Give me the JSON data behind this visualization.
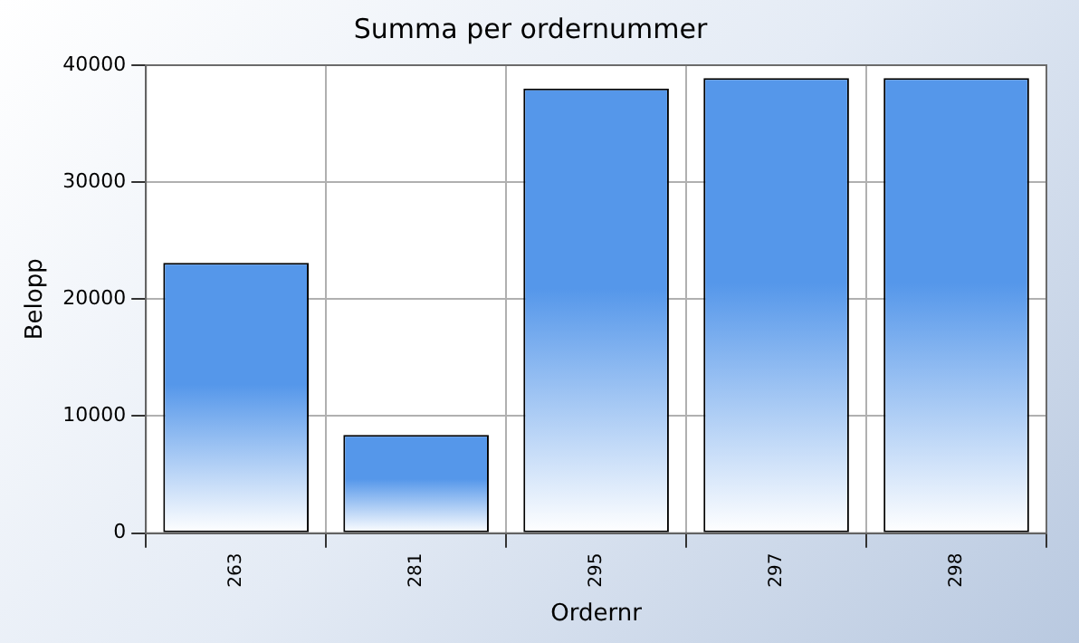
{
  "chart_data": {
    "type": "bar",
    "title": "Summa per ordernummer",
    "xlabel": "Ordernr",
    "ylabel": "Belopp",
    "categories": [
      "263",
      "281",
      "295",
      "297",
      "298"
    ],
    "values": [
      23100,
      8400,
      38000,
      38900,
      38900
    ],
    "color": "#5597ea",
    "ylim": [
      0,
      40000
    ],
    "yticks": [
      0,
      10000,
      20000,
      30000,
      40000
    ],
    "grid": true,
    "legend": false
  }
}
